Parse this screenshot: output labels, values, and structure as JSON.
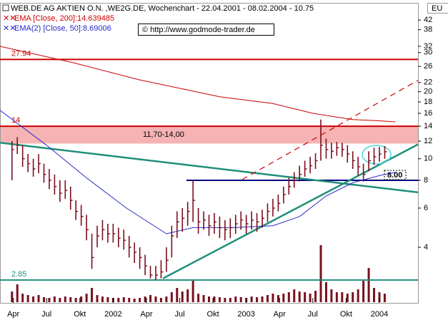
{
  "chart_data": {
    "type": "ohlc",
    "title": "WEB.DE AG AKTIEN O.N. ,WE2G.DE, Wochenchart - 22.04.2001 - 08.02.2004 - 10.75",
    "watermark": "© http://www.godmode-trader.de",
    "corner_label": "EU",
    "log_scale": true,
    "xlim": [
      2001.15,
      2004.29
    ],
    "ylim": [
      2.3,
      48
    ],
    "yticks": [
      4,
      6,
      8,
      10,
      12,
      14,
      16,
      18,
      20,
      22,
      26,
      30,
      32,
      38,
      42
    ],
    "xticks": [
      {
        "value": 2001.25,
        "label": "Apr"
      },
      {
        "value": 2001.5,
        "label": "Jul"
      },
      {
        "value": 2001.75,
        "label": "Okt"
      },
      2002,
      {
        "value": 2002.25,
        "label": "Apr"
      },
      {
        "value": 2002.5,
        "label": "Jul"
      },
      {
        "value": 2002.75,
        "label": "Okt"
      },
      2003,
      {
        "value": 2003.25,
        "label": "Apr"
      },
      {
        "value": 2003.5,
        "label": "Jul"
      },
      {
        "value": 2003.75,
        "label": "Okt"
      },
      2004
    ],
    "color": "#7a0f1e",
    "x": [
      2001.24,
      2001.28,
      2001.32,
      2001.36,
      2001.4,
      2001.44,
      2001.48,
      2001.52,
      2001.56,
      2001.6,
      2001.64,
      2001.68,
      2001.72,
      2001.76,
      2001.8,
      2001.84,
      2001.88,
      2001.92,
      2001.96,
      2002.0,
      2002.04,
      2002.08,
      2002.12,
      2002.16,
      2002.2,
      2002.24,
      2002.28,
      2002.32,
      2002.36,
      2002.4,
      2002.44,
      2002.48,
      2002.52,
      2002.56,
      2002.6,
      2002.64,
      2002.68,
      2002.72,
      2002.76,
      2002.8,
      2002.84,
      2002.88,
      2002.92,
      2002.96,
      2003.0,
      2003.04,
      2003.08,
      2003.12,
      2003.16,
      2003.2,
      2003.24,
      2003.28,
      2003.32,
      2003.36,
      2003.4,
      2003.44,
      2003.48,
      2003.52,
      2003.56,
      2003.6,
      2003.64,
      2003.68,
      2003.72,
      2003.76,
      2003.8,
      2003.84,
      2003.88,
      2003.92,
      2003.96,
      2004.0,
      2004.04
    ],
    "high": [
      12,
      12.5,
      11.5,
      10.5,
      10,
      10.5,
      9.5,
      9,
      8.5,
      8,
      8,
      7.5,
      6.5,
      6.2,
      5.6,
      4.6,
      5,
      5.3,
      5.1,
      5.1,
      4.9,
      4.8,
      4.5,
      4.2,
      4,
      3.7,
      3.3,
      3.3,
      3.5,
      4,
      5,
      5.8,
      6,
      6.4,
      8,
      6,
      5.8,
      5.6,
      5.7,
      5.5,
      5.3,
      5.4,
      5.6,
      5.8,
      5.6,
      5.8,
      5.7,
      5.9,
      6.3,
      6.6,
      6.9,
      7.5,
      8.2,
      8.7,
      9.3,
      9.8,
      10.2,
      10.6,
      15,
      12.3,
      11.8,
      11.9,
      11.8,
      11.5,
      10.8,
      10.2,
      9.5,
      10.8,
      11.2,
      11.3,
      11.4
    ],
    "low": [
      8,
      10.5,
      9.2,
      8.7,
      8.3,
      8.6,
      7.8,
      7.3,
      6.9,
      6.4,
      6.6,
      5.9,
      5.3,
      5,
      4.3,
      3.2,
      4,
      4.3,
      4.2,
      4.2,
      4,
      3.9,
      3.6,
      3.4,
      3.2,
      3,
      2.9,
      2.85,
      2.9,
      3.1,
      3.6,
      4.4,
      4.7,
      5,
      5.2,
      4.6,
      4.8,
      4.5,
      4.6,
      4.4,
      4.3,
      4.4,
      4.6,
      4.8,
      4.6,
      4.8,
      4.7,
      4.9,
      5.2,
      5.5,
      5.8,
      6.3,
      6.9,
      7.4,
      7.9,
      8.3,
      8.6,
      9,
      9.8,
      10,
      10,
      10.3,
      10.2,
      9.6,
      9,
      8.4,
      7.9,
      8.8,
      9.4,
      9.7,
      10
    ],
    "close": [
      11,
      11.5,
      10,
      9.5,
      9,
      9.5,
      8.5,
      8,
      7.5,
      7,
      7.2,
      6.5,
      5.8,
      5.5,
      4.8,
      3.6,
      4.5,
      4.8,
      4.6,
      4.6,
      4.4,
      4.3,
      4.0,
      3.8,
      3.6,
      3.3,
      3.0,
      3.0,
      3.1,
      3.5,
      4.5,
      5.2,
      5.4,
      5.8,
      6.5,
      5.2,
      5.3,
      5.0,
      5.2,
      4.9,
      4.8,
      4.9,
      5.1,
      5.3,
      5.1,
      5.3,
      5.2,
      5.4,
      5.8,
      6.0,
      6.3,
      6.9,
      7.5,
      8.0,
      8.5,
      9.0,
      9.3,
      9.8,
      11.5,
      11.0,
      10.8,
      11.2,
      11.0,
      10.5,
      9.8,
      9.2,
      8.5,
      9.8,
      10.2,
      10.5,
      10.75
    ],
    "volume": [
      15,
      25,
      12,
      10,
      8,
      10,
      7,
      6,
      8,
      6,
      8,
      7,
      6,
      8,
      12,
      20,
      10,
      8,
      7,
      6,
      6,
      7,
      6,
      5,
      6,
      8,
      10,
      8,
      6,
      8,
      14,
      20,
      15,
      18,
      30,
      12,
      10,
      8,
      8,
      7,
      6,
      6,
      8,
      7,
      6,
      8,
      7,
      8,
      10,
      12,
      10,
      12,
      14,
      18,
      15,
      14,
      12,
      16,
      80,
      28,
      18,
      14,
      14,
      12,
      14,
      18,
      30,
      48,
      20,
      14,
      12
    ],
    "series": [
      {
        "name": "EMA [Close, 200]:14.639485",
        "color": "#cc0000",
        "x": [
          2001.15,
          2001.7,
          2002.2,
          2002.8,
          2003.2,
          2003.5,
          2003.8,
          2004.0,
          2004.12
        ],
        "values": [
          32,
          27,
          22.6,
          19,
          17.7,
          16,
          15,
          14.8,
          14.64
        ]
      },
      {
        "name": "EMA(2) [Close, 50]:8.69006",
        "color": "#2a2ac8",
        "x": [
          2001.15,
          2001.5,
          2001.8,
          2002.1,
          2002.4,
          2002.6,
          2002.9,
          2003.2,
          2003.4,
          2003.6,
          2003.8,
          2004.0,
          2004.12
        ],
        "values": [
          16.5,
          11.5,
          8.2,
          6.0,
          4.6,
          4.9,
          4.9,
          5.0,
          5.5,
          6.8,
          7.8,
          8.4,
          8.69
        ]
      }
    ],
    "band": {
      "from": 11.7,
      "to": 14,
      "label": "11,70-14,00",
      "color": "#f6b3b3"
    },
    "levels": [
      {
        "value": 27.94,
        "label": "27.94",
        "color": "#cc0000",
        "from": 2001.15
      },
      {
        "value": 14,
        "label": "14",
        "color": "#cc0000",
        "from": 2001.15
      },
      {
        "value": 2.85,
        "label": "2.85",
        "color": "#1f8f7a",
        "from": 2001.15
      },
      {
        "value": 8,
        "label": "8.00",
        "color": "#000080",
        "from": 2002.55
      }
    ],
    "trendlines": [
      {
        "x": [
          2001.15,
          2004.29
        ],
        "y": [
          11.8,
          7.06
        ],
        "color": "#1f8f7a",
        "dashed": false
      },
      {
        "x": [
          2002.375,
          2004.29
        ],
        "y": [
          2.9,
          11.6
        ],
        "color": "#1f8f7a",
        "dashed": false
      },
      {
        "x": [
          2002.97,
          2004.29
        ],
        "y": [
          8.07,
          22.5
        ],
        "color": "#cc0000",
        "dashed": true
      }
    ]
  }
}
